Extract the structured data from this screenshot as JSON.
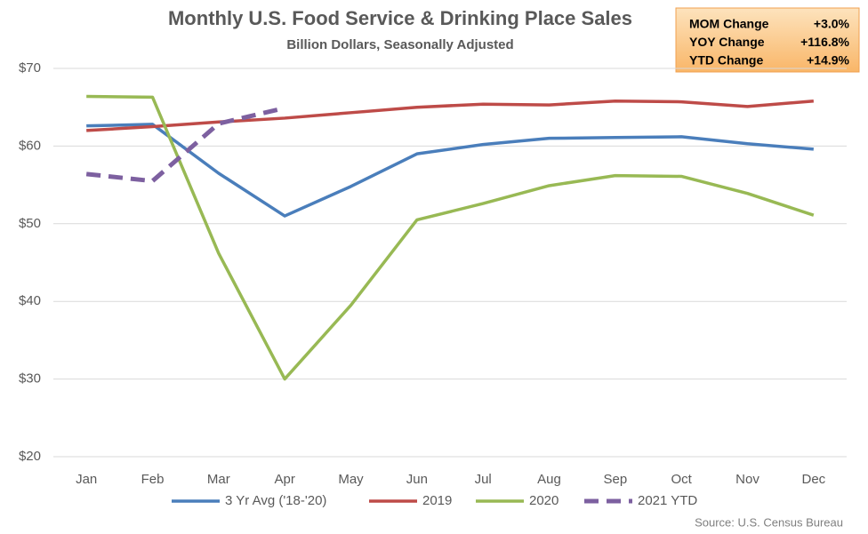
{
  "chart_data": {
    "type": "line",
    "title": "Monthly U.S. Food Service & Drinking Place Sales",
    "subtitle": "Billion Dollars, Seasonally Adjusted",
    "source": "Source: U.S. Census Bureau",
    "categories": [
      "Jan",
      "Feb",
      "Mar",
      "Apr",
      "May",
      "Jun",
      "Jul",
      "Aug",
      "Sep",
      "Oct",
      "Nov",
      "Dec"
    ],
    "series": [
      {
        "name": "3 Yr Avg ('18-'20)",
        "color": "#4a7ebb",
        "values": [
          62.6,
          62.8,
          56.5,
          51.0,
          54.8,
          59.0,
          60.2,
          61.0,
          61.1,
          61.2,
          60.3,
          59.6
        ]
      },
      {
        "name": "2019",
        "color": "#be4b48",
        "values": [
          62.0,
          62.5,
          63.1,
          63.6,
          64.3,
          65.0,
          65.4,
          65.3,
          65.8,
          65.7,
          65.1,
          65.8
        ]
      },
      {
        "name": "2020",
        "color": "#98b954",
        "values": [
          66.4,
          66.3,
          46.2,
          30.0,
          39.5,
          50.5,
          52.6,
          54.9,
          56.2,
          56.1,
          53.9,
          51.1
        ]
      },
      {
        "name": "2021 YTD",
        "color": "#7d60a0",
        "dashed": true,
        "values": [
          56.4,
          55.5,
          62.9,
          64.9,
          null,
          null,
          null,
          null,
          null,
          null,
          null,
          null
        ]
      }
    ],
    "ylim": [
      20,
      70
    ],
    "yticks": [
      {
        "value": 20,
        "label": "$20"
      },
      {
        "value": 30,
        "label": "$30"
      },
      {
        "value": 40,
        "label": "$40"
      },
      {
        "value": 50,
        "label": "$50"
      },
      {
        "value": 60,
        "label": "$60"
      },
      {
        "value": 70,
        "label": "$70"
      }
    ],
    "grid": true,
    "legend": "bottom",
    "annotations": [
      {
        "label": "MOM Change",
        "value": "+3.0%"
      },
      {
        "label": "YOY Change",
        "value": "+116.8%"
      },
      {
        "label": "YTD Change",
        "value": "+14.9%"
      }
    ]
  }
}
